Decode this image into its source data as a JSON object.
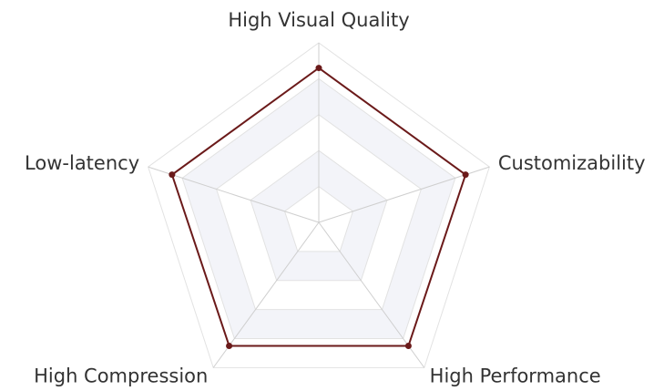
{
  "chart_data": {
    "type": "radar",
    "indicators": [
      "High Visual Quality",
      "Customizability",
      "High Performance",
      "High Compression",
      "Low-latency"
    ],
    "values": [
      86,
      86,
      85,
      85,
      86
    ],
    "color": "#6b1a1a",
    "rlim": [
      0,
      100
    ],
    "rticks": [
      20,
      40,
      60,
      80,
      100
    ],
    "split_area": true
  }
}
